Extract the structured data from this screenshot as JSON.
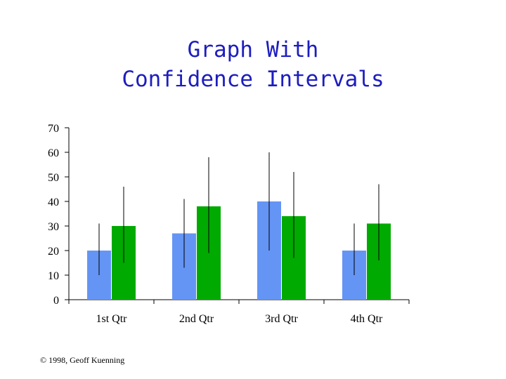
{
  "slide": {
    "title_line1": "Graph With",
    "title_line2": "Confidence Intervals",
    "footer": "© 1998, Geoff Kuenning"
  },
  "chart_data": {
    "type": "bar",
    "categories": [
      "1st Qtr",
      "2nd Qtr",
      "3rd Qtr",
      "4th Qtr"
    ],
    "series": [
      {
        "color": "#6495f5",
        "values": [
          20,
          27,
          40,
          20
        ],
        "ci_low": [
          10,
          13,
          20,
          10
        ],
        "ci_high": [
          31,
          41,
          60,
          31
        ]
      },
      {
        "color": "#00aa00",
        "values": [
          30,
          38,
          34,
          31
        ],
        "ci_low": [
          15,
          19,
          17,
          16
        ],
        "ci_high": [
          46,
          58,
          52,
          47
        ]
      }
    ],
    "ylim": [
      0,
      70
    ],
    "yticks": [
      0,
      10,
      20,
      30,
      40,
      50,
      60,
      70
    ],
    "grid": false,
    "legend": "none",
    "xlabel": "",
    "ylabel": ""
  }
}
